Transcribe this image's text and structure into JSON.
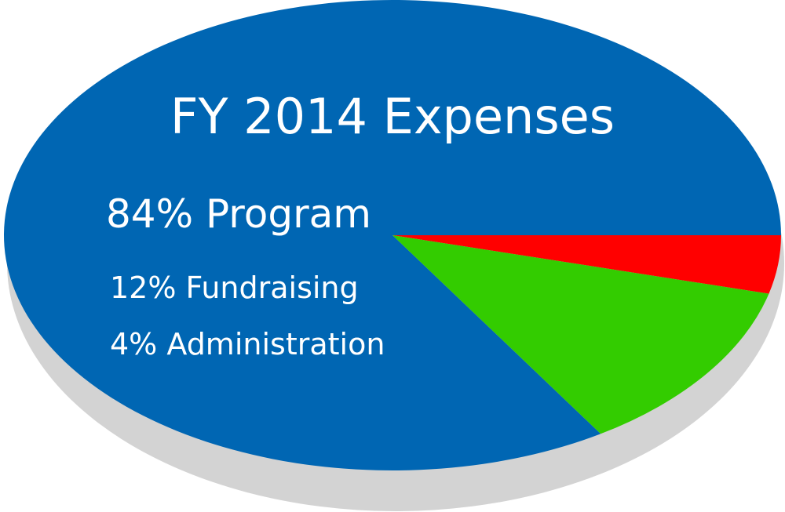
{
  "chart_data": {
    "type": "pie",
    "title": "FY 2014 Expenses",
    "slices": [
      {
        "label": "Program",
        "value": 84,
        "display": "84% Program",
        "color": "#0066B3"
      },
      {
        "label": "Fundraising",
        "value": 12,
        "display": "12% Fundraising",
        "color": "#33CC00"
      },
      {
        "label": "Administration",
        "value": 4,
        "display": "4% Administration",
        "color": "#FF0000"
      }
    ],
    "unit": "%",
    "shadow_color": "#D3D3D3"
  }
}
